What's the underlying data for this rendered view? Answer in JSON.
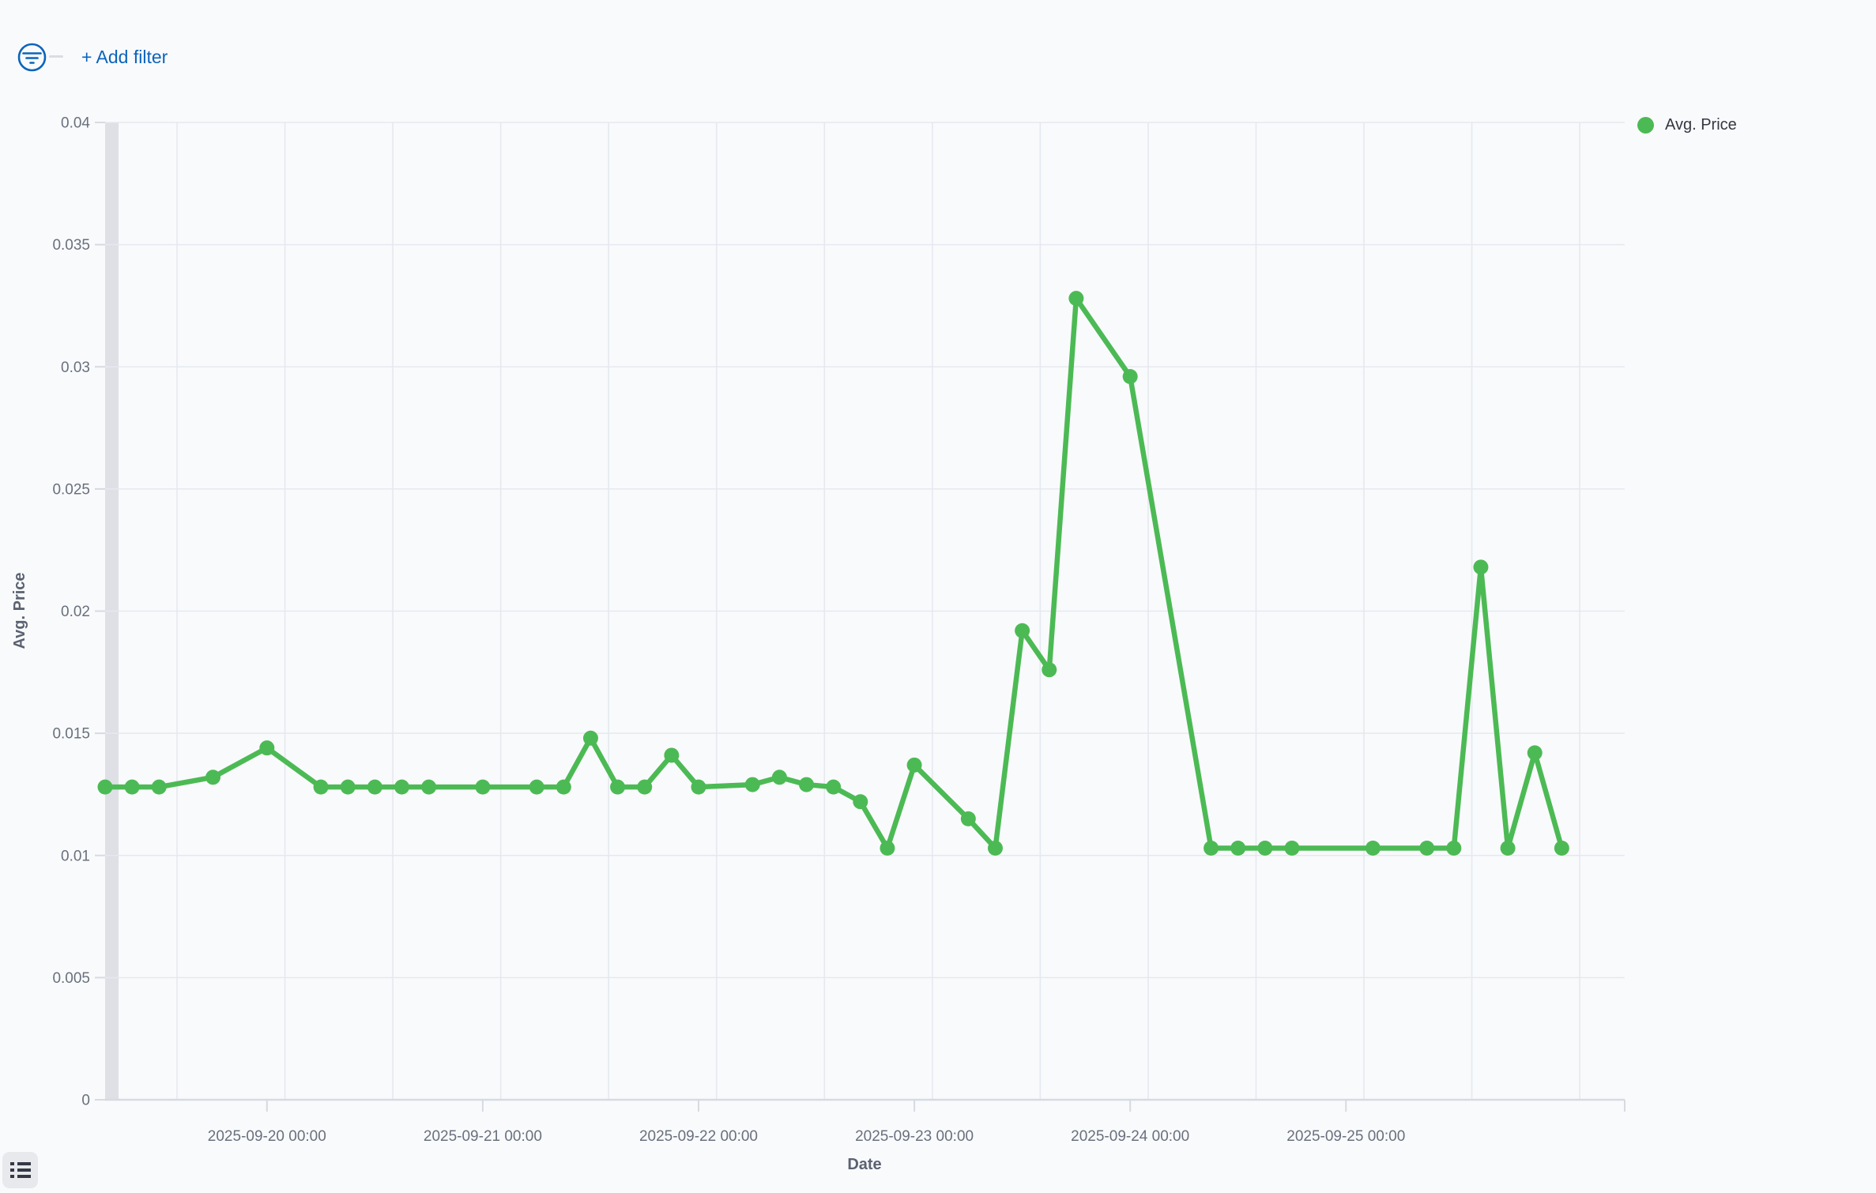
{
  "colors": {
    "background": "#F9FAFC",
    "accent_blue": "#0B64BB",
    "series_green": "#4CBA54",
    "gridline": "#E5E9EF",
    "axis_line": "#D6DAE1",
    "tick_label": "#69707D",
    "axis_title": "#5B6271",
    "legend_text": "#343741",
    "partial_bucket_band": "#DEE0E5",
    "toggle_button_bg": "#E7E9ED",
    "toggle_icon": "#353944"
  },
  "filter_bar": {
    "filter_icon": "filter-in-circle-icon",
    "add_filter_label": "+ Add filter"
  },
  "legend": {
    "position": "top-right",
    "items": [
      {
        "label": "Avg. Price",
        "color": "#4CBA54"
      }
    ]
  },
  "footer": {
    "toggle_icon": "list-icon"
  },
  "chart_data": {
    "type": "line",
    "title": "",
    "xlabel": "Date",
    "ylabel": "Avg. Price",
    "series_name": "Avg. Price",
    "legend_position": "top-right",
    "grid_on": true,
    "x_domain": [
      "2025-09-19 06:00",
      "2025-09-26 07:00"
    ],
    "y_domain": [
      0,
      0.04
    ],
    "y_ticks": [
      0,
      0.005,
      0.01,
      0.015,
      0.02,
      0.025,
      0.03,
      0.035,
      0.04
    ],
    "y_tick_labels": [
      "0",
      "0.005",
      "0.01",
      "0.015",
      "0.02",
      "0.025",
      "0.03",
      "0.035",
      "0.04"
    ],
    "x_ticks": [
      "2025-09-20 00:00",
      "2025-09-21 00:00",
      "2025-09-22 00:00",
      "2025-09-23 00:00",
      "2025-09-24 00:00",
      "2025-09-25 00:00"
    ],
    "grid": {
      "start": "2025-09-19 14:00",
      "interval_hours": 12,
      "count": 14
    },
    "partial_band": {
      "from": "2025-09-19 06:00",
      "to": "2025-09-19 07:30"
    },
    "points": [
      [
        "2025-09-19 06:00",
        0.0128
      ],
      [
        "2025-09-19 09:00",
        0.0128
      ],
      [
        "2025-09-19 12:00",
        0.0128
      ],
      [
        "2025-09-19 18:00",
        0.0132
      ],
      [
        "2025-09-20 00:00",
        0.0144
      ],
      [
        "2025-09-20 06:00",
        0.0128
      ],
      [
        "2025-09-20 09:00",
        0.0128
      ],
      [
        "2025-09-20 12:00",
        0.0128
      ],
      [
        "2025-09-20 15:00",
        0.0128
      ],
      [
        "2025-09-20 18:00",
        0.0128
      ],
      [
        "2025-09-21 00:00",
        0.0128
      ],
      [
        "2025-09-21 06:00",
        0.0128
      ],
      [
        "2025-09-21 09:00",
        0.0128
      ],
      [
        "2025-09-21 12:00",
        0.0148
      ],
      [
        "2025-09-21 15:00",
        0.0128
      ],
      [
        "2025-09-21 18:00",
        0.0128
      ],
      [
        "2025-09-21 21:00",
        0.0141
      ],
      [
        "2025-09-22 00:00",
        0.0128
      ],
      [
        "2025-09-22 06:00",
        0.0129
      ],
      [
        "2025-09-22 09:00",
        0.0132
      ],
      [
        "2025-09-22 12:00",
        0.0129
      ],
      [
        "2025-09-22 15:00",
        0.0128
      ],
      [
        "2025-09-22 18:00",
        0.0122
      ],
      [
        "2025-09-22 21:00",
        0.0103
      ],
      [
        "2025-09-23 00:00",
        0.0137
      ],
      [
        "2025-09-23 06:00",
        0.0115
      ],
      [
        "2025-09-23 09:00",
        0.0103
      ],
      [
        "2025-09-23 12:00",
        0.0192
      ],
      [
        "2025-09-23 15:00",
        0.0176
      ],
      [
        "2025-09-23 18:00",
        0.0328
      ],
      [
        "2025-09-24 00:00",
        0.0296
      ],
      [
        "2025-09-24 09:00",
        0.0103
      ],
      [
        "2025-09-24 12:00",
        0.0103
      ],
      [
        "2025-09-24 15:00",
        0.0103
      ],
      [
        "2025-09-24 18:00",
        0.0103
      ],
      [
        "2025-09-25 03:00",
        0.0103
      ],
      [
        "2025-09-25 09:00",
        0.0103
      ],
      [
        "2025-09-25 12:00",
        0.0103
      ],
      [
        "2025-09-25 15:00",
        0.0218
      ],
      [
        "2025-09-25 18:00",
        0.0103
      ],
      [
        "2025-09-25 21:00",
        0.0142
      ],
      [
        "2025-09-26 00:00",
        0.0103
      ]
    ]
  }
}
